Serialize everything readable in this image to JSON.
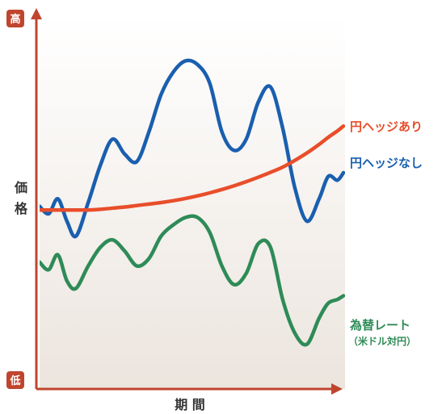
{
  "chart_data": {
    "type": "line",
    "title": "",
    "xlabel": "期 間",
    "ylabel": "価 格",
    "y_axis_top_label": "高",
    "y_axis_bottom_label": "低",
    "grid": false,
    "x": [
      0,
      3,
      6,
      9,
      12,
      16,
      20,
      24,
      28,
      32,
      36,
      40,
      44,
      48,
      52,
      56,
      60,
      64,
      68,
      72,
      76,
      80,
      84,
      88,
      92,
      95,
      98,
      100
    ],
    "xlim": [
      0,
      100
    ],
    "ylim": [
      0,
      100
    ],
    "series": [
      {
        "name": "円ヘッジあり",
        "color": "#e84e2a",
        "values": [
          48,
          48,
          48,
          48,
          48,
          48,
          48.2,
          48.5,
          48.8,
          49.2,
          49.6,
          50,
          50.5,
          51.1,
          51.8,
          52.6,
          53.5,
          54.5,
          55.6,
          56.8,
          58.1,
          59.5,
          61.3,
          63.3,
          65.6,
          67.5,
          69.2,
          70.5
        ]
      },
      {
        "name": "円ヘッジなし",
        "color": "#1a5faf",
        "values": [
          49,
          47,
          51,
          45,
          41,
          50,
          60,
          67,
          63,
          61,
          69,
          79,
          85,
          88,
          87,
          82,
          69,
          64,
          67,
          77,
          81,
          70,
          54,
          45,
          51,
          57,
          56,
          58
        ]
      },
      {
        "name": "為替レート",
        "name_sub": "（米ドル対円）",
        "color": "#2e8b57",
        "values": [
          34,
          32,
          36,
          29,
          27,
          33,
          38,
          40,
          37,
          33,
          35,
          41,
          44,
          46,
          46,
          42,
          33,
          28,
          31,
          39,
          38,
          24,
          15,
          12,
          19,
          23,
          24,
          25
        ]
      }
    ]
  },
  "colors": {
    "plot_background_top": "#ffffff",
    "plot_background_bottom": "#ece5de",
    "axis": "#c0452e",
    "badge": "#c0452e"
  }
}
